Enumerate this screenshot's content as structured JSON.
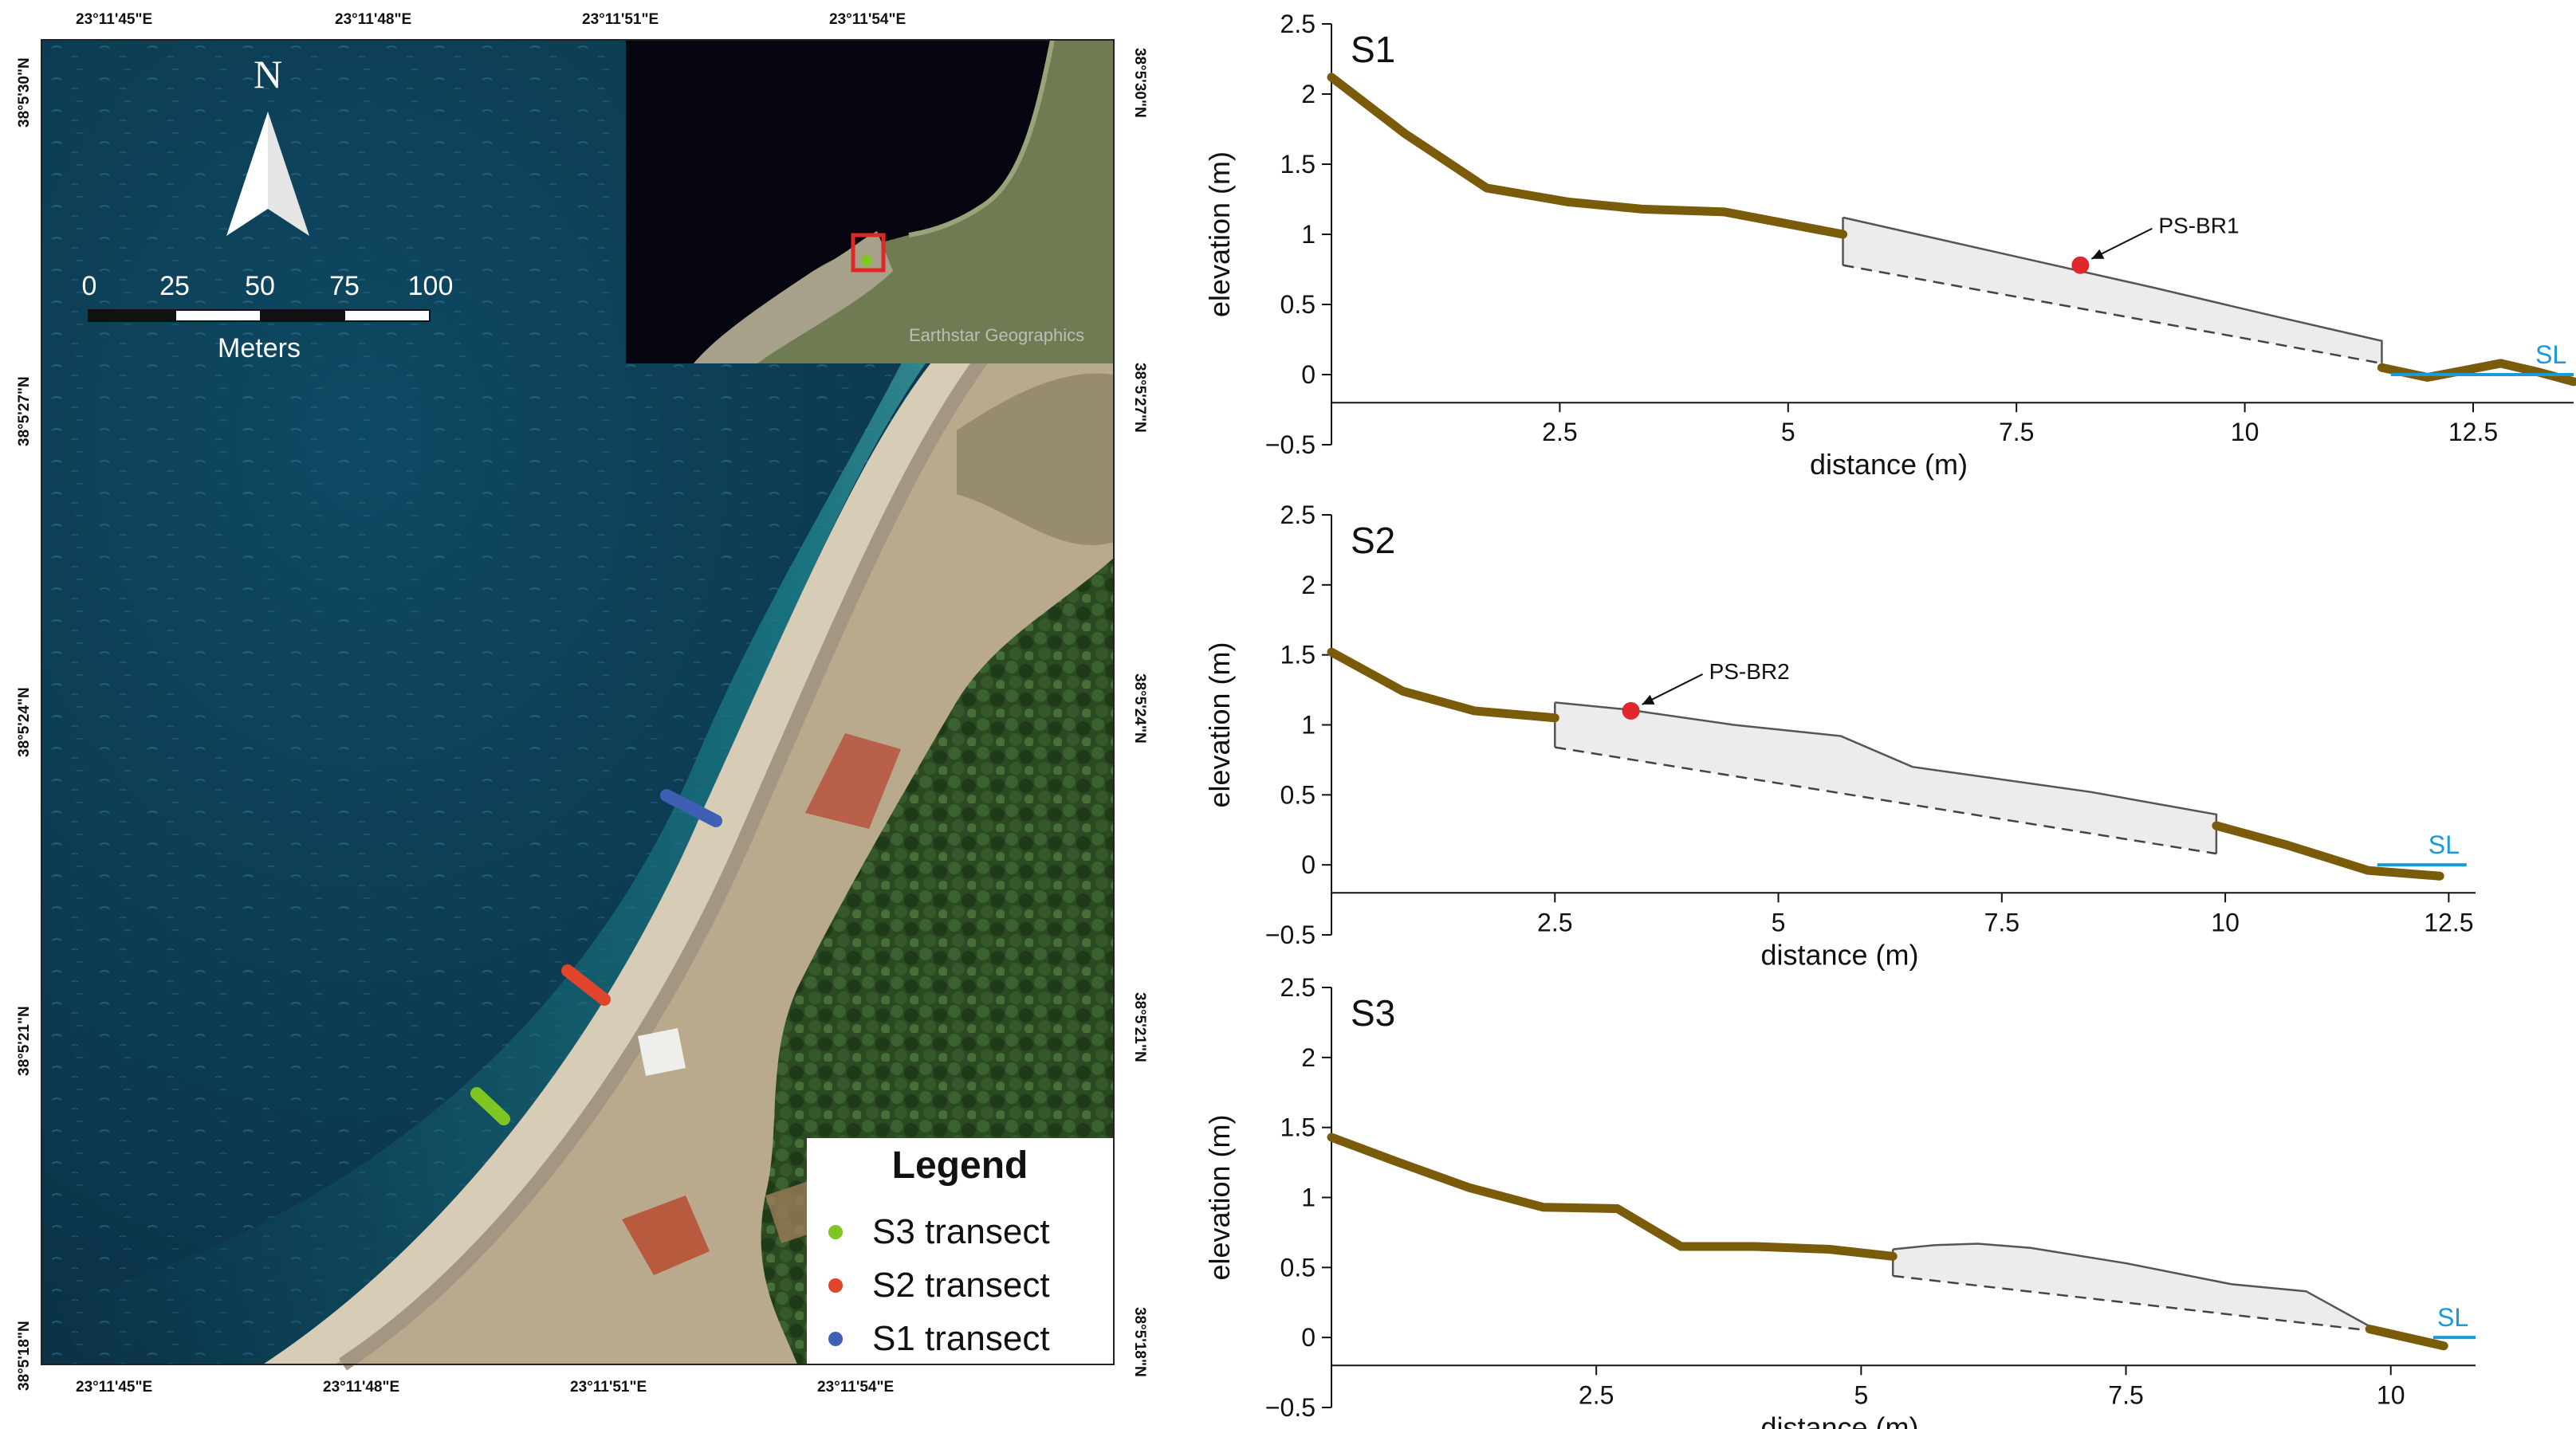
{
  "map": {
    "lon_labels_top": [
      "23°11'45\"E",
      "23°11'48\"E",
      "23°11'51\"E",
      "23°11'54\"E"
    ],
    "lon_labels_bottom": [
      "23°11'45\"E",
      "23°11'48\"E",
      "23°11'51\"E",
      "23°11'54\"E"
    ],
    "lat_labels_left": [
      "38°5'30\"N",
      "38°5'27\"N",
      "38°5'24\"N",
      "38°5'21\"N",
      "38°5'18\"N"
    ],
    "lat_labels_right": [
      "38°5'30\"N",
      "38°5'27\"N",
      "38°5'24\"N",
      "38°5'21\"N",
      "38°5'18\"N"
    ],
    "north_arrow": {
      "label": "N",
      "icon": "north-arrow-icon"
    },
    "scale_bar": {
      "ticks": [
        "0",
        "25",
        "50",
        "75",
        "100"
      ],
      "unit": "Meters"
    },
    "inset": {
      "attribution": "Earthstar Geographics"
    },
    "legend": {
      "title": "Legend",
      "items": [
        {
          "label": "S3 transect",
          "color": "#7ec621"
        },
        {
          "label": "S2 transect",
          "color": "#e0442b"
        },
        {
          "label": "S1 transect",
          "color": "#3f5fb5"
        }
      ]
    },
    "colors": {
      "sea": "#0c3b52",
      "shore": "#1d7c88",
      "beach": "#c3b59b",
      "forest": "#2c4a24",
      "inset_box": "#e0282a"
    }
  },
  "chart_data": [
    {
      "type": "line",
      "panel": "S1",
      "xlabel": "distance (m)",
      "ylabel": "elevation (m)",
      "xlim": [
        0,
        13.6
      ],
      "ylim": [
        -0.5,
        2.5
      ],
      "xticks": [
        "2.5",
        "5",
        "7.5",
        "10",
        "12.5"
      ],
      "yticks": [
        "-0.5",
        "0",
        "0.5",
        "1",
        "1.5",
        "2",
        "2.5"
      ],
      "profile": {
        "x": [
          0,
          0.8,
          1.7,
          2.6,
          3.4,
          4.3,
          5.6
        ],
        "y": [
          2.12,
          1.72,
          1.33,
          1.23,
          1.18,
          1.16,
          1.0
        ]
      },
      "profile_end": {
        "x": [
          11.5,
          12.0,
          12.4,
          12.8,
          13.2,
          13.6
        ],
        "y": [
          0.05,
          -0.02,
          0.03,
          0.08,
          0.02,
          -0.05
        ]
      },
      "beachrock": {
        "top_x": [
          5.6,
          9.0,
          10.3,
          11.5
        ],
        "top_y": [
          1.12,
          0.62,
          0.42,
          0.24
        ],
        "bottom_x": [
          5.6,
          11.5
        ],
        "bottom_y": [
          0.78,
          0.08
        ]
      },
      "sample": {
        "label": "PS-BR1",
        "x": 8.2,
        "y": 0.78
      },
      "sea_level": {
        "label": "SL",
        "y": 0,
        "x": [
          11.6,
          13.6
        ]
      }
    },
    {
      "type": "line",
      "panel": "S2",
      "xlabel": "distance (m)",
      "ylabel": "elevation (m)",
      "xlim": [
        0,
        12.8
      ],
      "ylim": [
        -0.5,
        2.5
      ],
      "xticks": [
        "2.5",
        "5",
        "7.5",
        "10",
        "12.5"
      ],
      "yticks": [
        "-0.5",
        "0",
        "0.5",
        "1",
        "1.5",
        "2",
        "2.5"
      ],
      "profile": {
        "x": [
          0,
          0.8,
          1.6,
          2.5
        ],
        "y": [
          1.52,
          1.24,
          1.1,
          1.05
        ]
      },
      "profile_end": {
        "x": [
          9.9,
          10.7,
          11.6,
          12.4
        ],
        "y": [
          0.28,
          0.14,
          -0.04,
          -0.08
        ]
      },
      "beachrock": {
        "top_x": [
          2.5,
          3.3,
          4.5,
          5.7,
          6.5,
          8.5,
          9.9
        ],
        "top_y": [
          1.16,
          1.11,
          1.0,
          0.92,
          0.7,
          0.52,
          0.36
        ],
        "bottom_x": [
          2.5,
          9.9
        ],
        "bottom_y": [
          0.84,
          0.08
        ]
      },
      "sample": {
        "label": "PS-BR2",
        "x": 3.35,
        "y": 1.1
      },
      "sea_level": {
        "label": "SL",
        "y": 0,
        "x": [
          11.7,
          12.7
        ]
      }
    },
    {
      "type": "line",
      "panel": "S3",
      "xlabel": "distance (m)",
      "ylabel": "elevation (m)",
      "xlim": [
        0,
        10.8
      ],
      "ylim": [
        -0.5,
        2.5
      ],
      "xticks": [
        "2.5",
        "5",
        "7.5",
        "10"
      ],
      "yticks": [
        "-0.5",
        "0",
        "0.5",
        "1",
        "1.5",
        "2",
        "2.5"
      ],
      "profile": {
        "x": [
          0,
          0.6,
          1.3,
          2.0,
          2.7,
          3.3,
          4.0,
          4.7,
          5.3
        ],
        "y": [
          1.43,
          1.26,
          1.07,
          0.93,
          0.92,
          0.65,
          0.65,
          0.63,
          0.58
        ]
      },
      "profile_end": {
        "x": [
          9.8,
          10.5
        ],
        "y": [
          0.06,
          -0.06
        ]
      },
      "beachrock": {
        "top_x": [
          5.3,
          5.7,
          6.1,
          6.6,
          7.5,
          8.5,
          9.2,
          9.8
        ],
        "top_y": [
          0.63,
          0.66,
          0.67,
          0.64,
          0.53,
          0.38,
          0.33,
          0.08
        ],
        "bottom_x": [
          5.3,
          9.8
        ],
        "bottom_y": [
          0.44,
          0.05
        ]
      },
      "sea_level": {
        "label": "SL",
        "y": 0,
        "x": [
          10.4,
          10.8
        ]
      }
    }
  ]
}
